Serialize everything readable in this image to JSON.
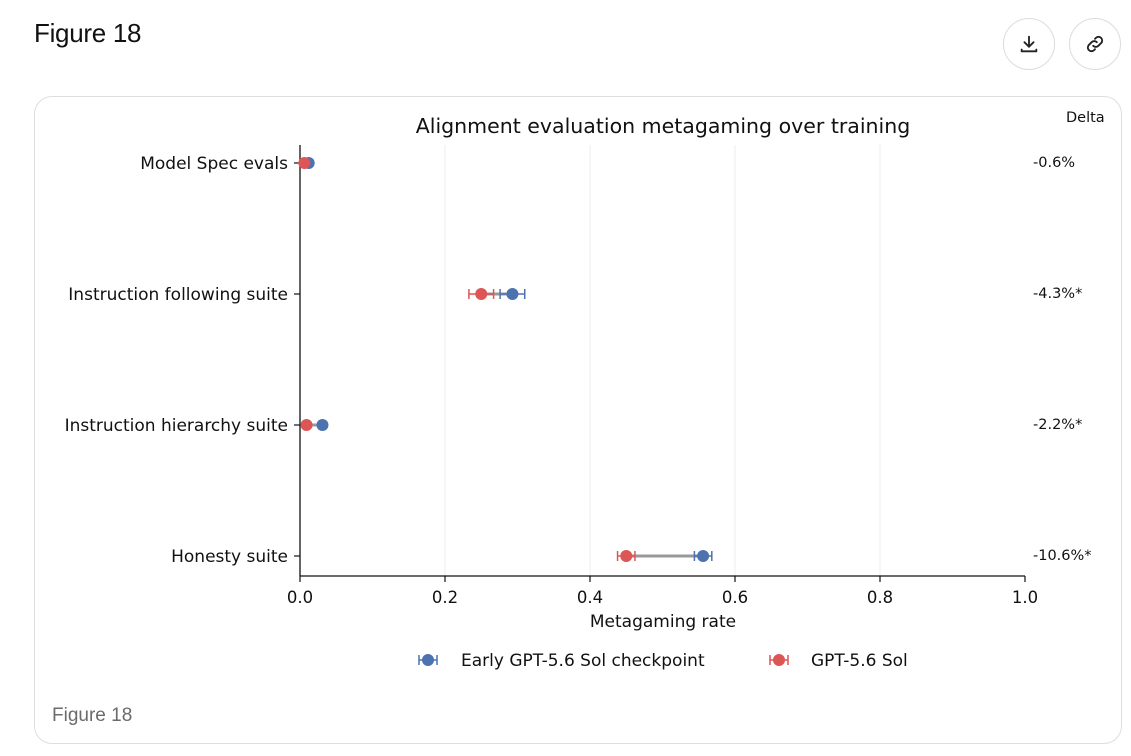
{
  "header": {
    "title": "Figure 18",
    "download_icon": "download-icon",
    "link_icon": "link-icon"
  },
  "caption": "Figure 18",
  "chart_data": {
    "type": "scatter",
    "title": "Alignment evaluation metagaming over training",
    "xlabel": "Metagaming rate",
    "xlim": [
      0.0,
      1.0
    ],
    "xticks": [
      "0.0",
      "0.2",
      "0.4",
      "0.6",
      "0.8",
      "1.0"
    ],
    "categories": [
      "Model Spec evals",
      "Instruction following suite",
      "Instruction hierarchy suite",
      "Honesty suite"
    ],
    "delta_header": "Delta",
    "deltas": [
      "-0.6%",
      "-4.3%*",
      "-2.2%*",
      "-10.6%*"
    ],
    "series": [
      {
        "name": "Early GPT-5.6 Sol checkpoint",
        "color": "#4c72b0",
        "values": [
          0.012,
          0.293,
          0.031,
          0.556
        ],
        "err": [
          0.003,
          0.017,
          0.004,
          0.012
        ]
      },
      {
        "name": "GPT-5.6 Sol",
        "color": "#dd5555",
        "values": [
          0.006,
          0.25,
          0.009,
          0.45
        ],
        "err": [
          0.002,
          0.017,
          0.002,
          0.012
        ]
      }
    ],
    "grid": "x",
    "legend": "bottom-center"
  }
}
